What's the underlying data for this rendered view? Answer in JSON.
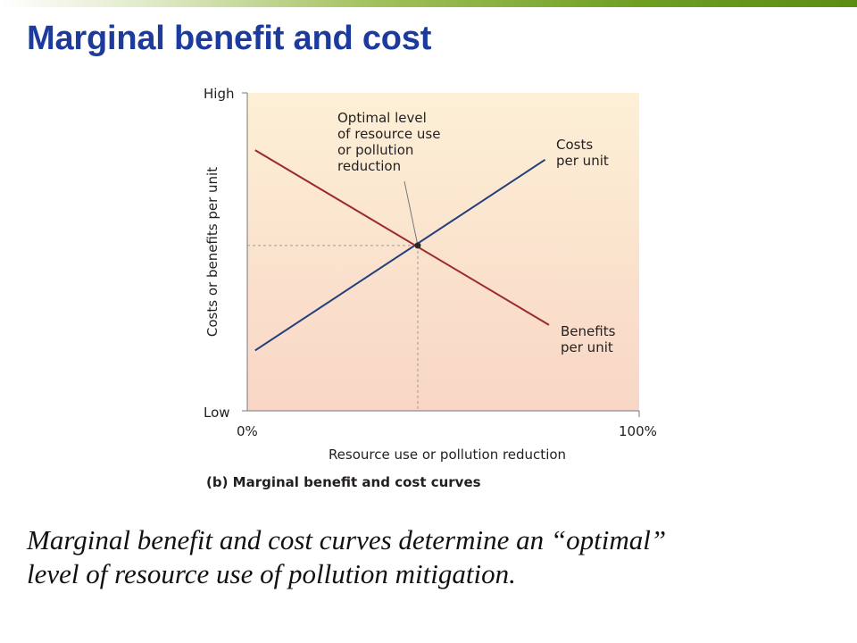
{
  "slide": {
    "title": "Marginal benefit and cost",
    "caption_line1": "Marginal benefit and cost curves determine an “optimal”",
    "caption_line2": "level of resource use of pollution mitigation."
  },
  "colors": {
    "title": "#1c3b9c",
    "costs_line": "#233e7a",
    "benefits_line": "#9b2a2f",
    "plot_top": "#fdf0d6",
    "plot_bottom": "#f8d6c6"
  },
  "chart_data": {
    "type": "line",
    "figure_label": "(b) Marginal benefit and cost curves",
    "xlabel": "Resource use or pollution reduction",
    "ylabel": "Costs or benefits per unit",
    "x_tick_labels": [
      "0%",
      "100%"
    ],
    "y_tick_labels": [
      "Low",
      "High"
    ],
    "xlim": [
      0,
      100
    ],
    "ylim": [
      0,
      100
    ],
    "grid": false,
    "series": [
      {
        "name": "Costs per unit",
        "label_lines": [
          "Costs",
          "per unit"
        ],
        "color": "#233e7a",
        "x": [
          2,
          76
        ],
        "y": [
          19,
          79
        ]
      },
      {
        "name": "Benefits per unit",
        "label_lines": [
          "Benefits",
          "per unit"
        ],
        "color": "#9b2a2f",
        "x": [
          2,
          77
        ],
        "y": [
          82,
          27
        ]
      }
    ],
    "optimum": {
      "x": 43.5,
      "y": 52
    },
    "annotation_lines": [
      "Optimal level",
      "of resource use",
      "or pollution",
      "reduction"
    ]
  }
}
